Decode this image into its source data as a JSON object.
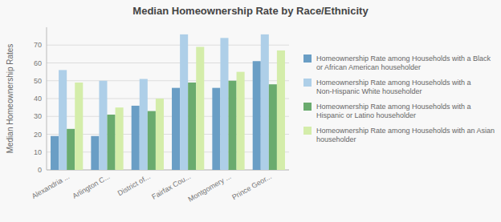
{
  "chart_data": {
    "type": "bar",
    "title": "Median Homeownership Rate by Race/Ethnicity",
    "ylabel": "Median Homeownership Rates",
    "categories": [
      "Alexandria ...",
      "Arlington C...",
      "District of...",
      "Fairfax Cou...",
      "Montgomery ...",
      "Prince Geor..."
    ],
    "series": [
      {
        "name": "Homeownership Rate among Households with a Black or African American householder",
        "color": "#6a9ec5",
        "values": [
          19,
          19,
          36,
          46,
          46,
          61
        ]
      },
      {
        "name": "Homeownership Rate among Households with a Non-Hispanic White householder",
        "color": "#aecfe8",
        "values": [
          56,
          50,
          51,
          76,
          74,
          76
        ]
      },
      {
        "name": "Homeownership Rate among Households with a Hispanic or Latino householder",
        "color": "#6aab6e",
        "values": [
          23,
          31,
          33,
          49,
          50,
          48
        ]
      },
      {
        "name": "Homeownership Rate among Households with an Asian householder",
        "color": "#d4edaa",
        "values": [
          49,
          35,
          40,
          69,
          55,
          67
        ]
      }
    ],
    "ylim": [
      0,
      80
    ],
    "yticks": [
      0,
      10,
      20,
      30,
      40,
      50,
      60,
      70
    ],
    "grid": true,
    "legend": "right"
  }
}
